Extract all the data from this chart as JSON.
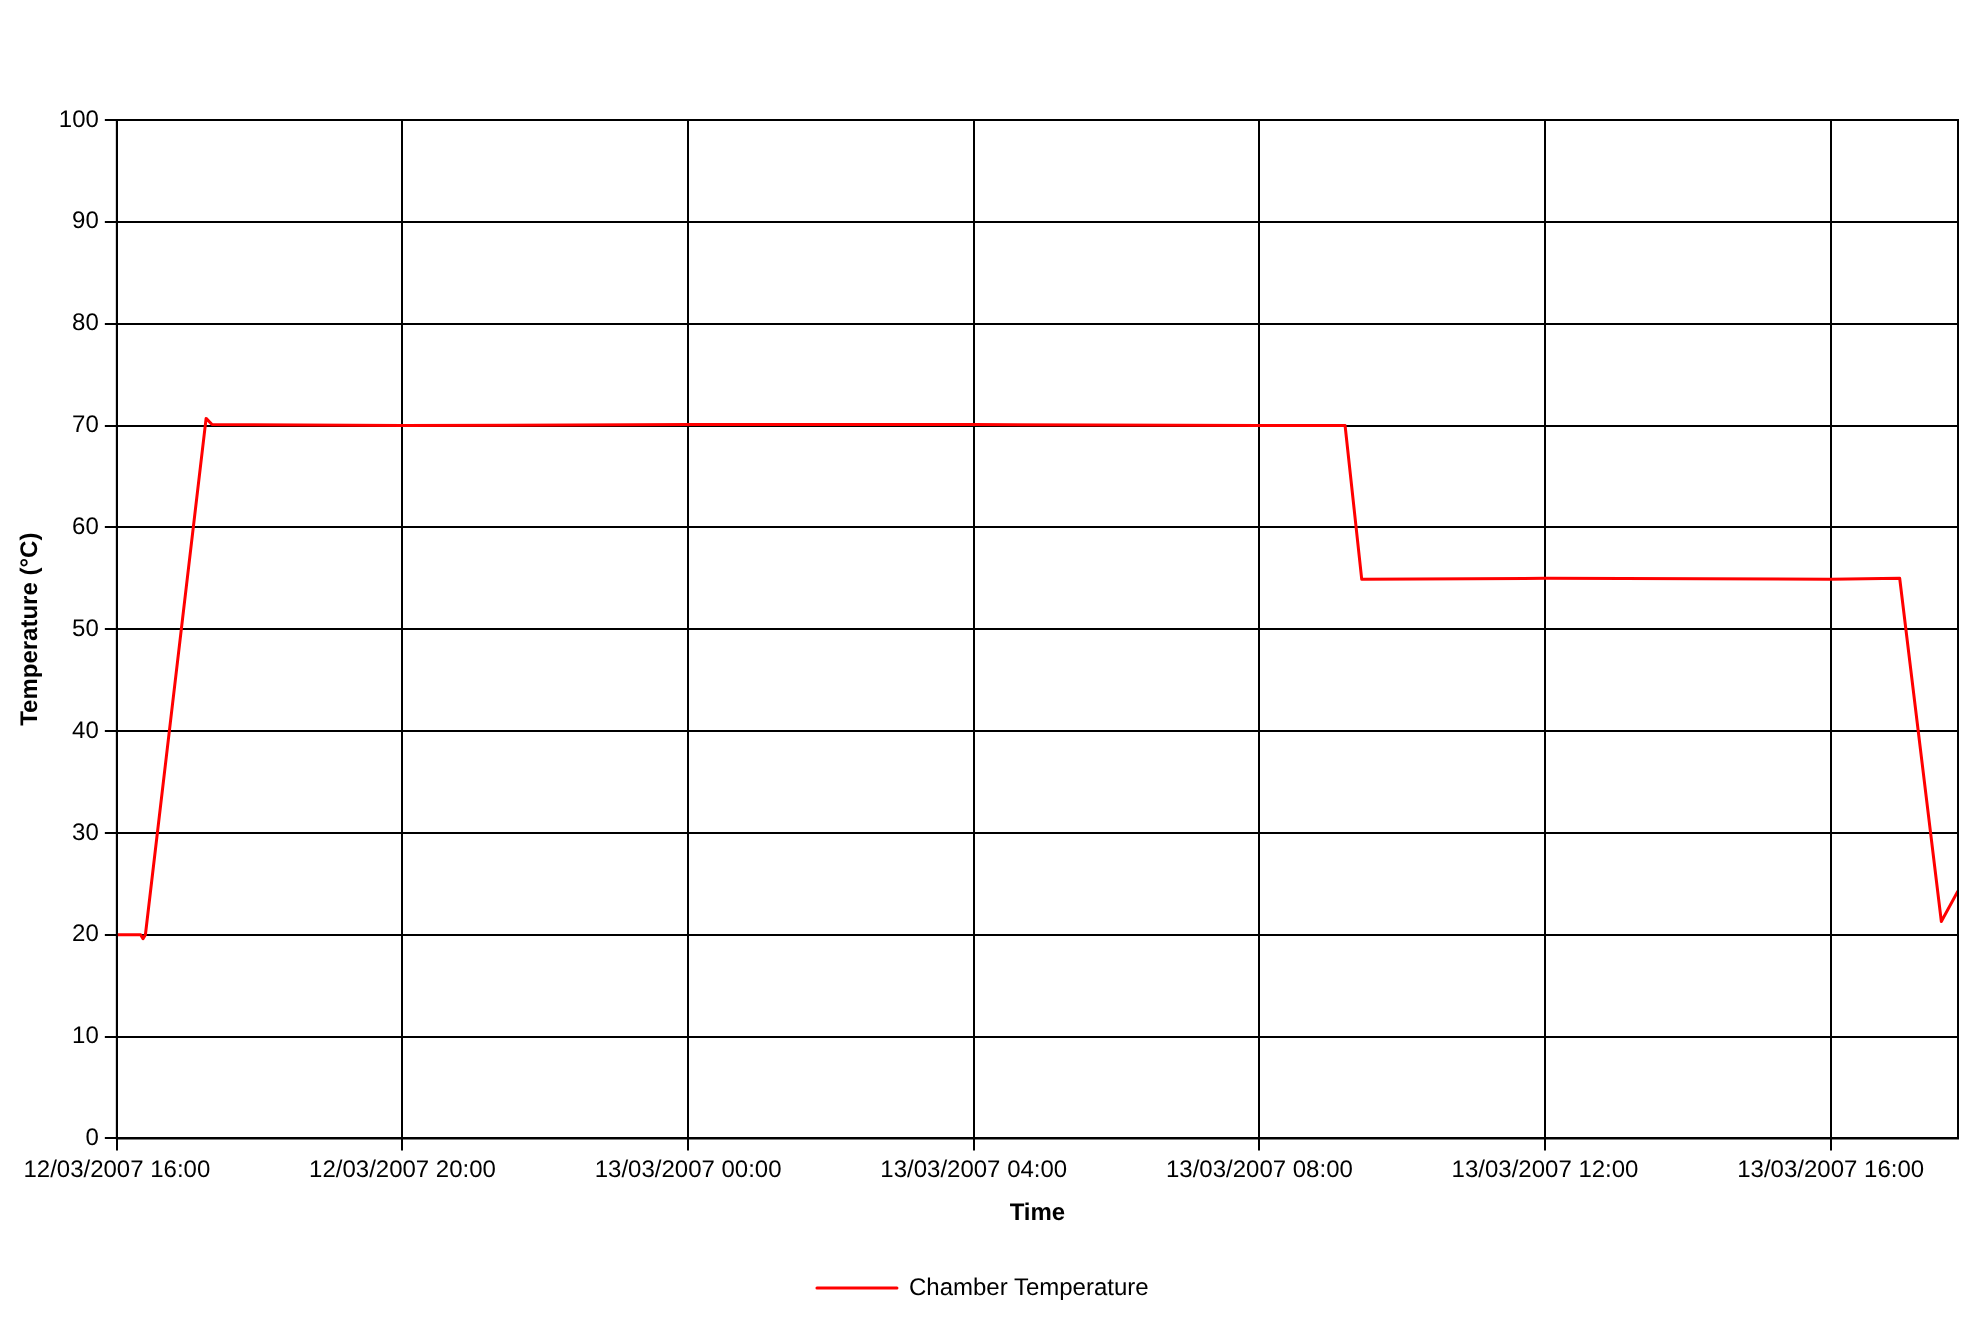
{
  "chart_data": {
    "type": "line",
    "xlabel": "Time",
    "ylabel": "Temperature (°C)",
    "x": [
      "2007-03-12T16:00",
      "2007-03-12T16:20",
      "2007-03-12T16:22",
      "2007-03-12T16:24",
      "2007-03-12T17:15",
      "2007-03-12T17:20",
      "2007-03-12T20:00",
      "2007-03-13T00:00",
      "2007-03-13T04:00",
      "2007-03-13T08:00",
      "2007-03-13T09:12",
      "2007-03-13T09:26",
      "2007-03-13T12:00",
      "2007-03-13T16:00",
      "2007-03-13T16:58",
      "2007-03-13T17:33",
      "2007-03-13T17:47"
    ],
    "series": [
      {
        "name": "Chamber Temperature",
        "color": "#ff0000",
        "values": [
          20,
          20,
          19.6,
          20,
          70.7,
          70.1,
          70,
          70.1,
          70.1,
          70,
          70,
          54.9,
          55,
          54.9,
          55,
          21.3,
          24.3
        ]
      }
    ],
    "xlim": [
      "2007-03-12T16:00",
      "2007-03-13T17:47"
    ],
    "xticks": [
      {
        "value": "2007-03-12T16:00",
        "label": "12/03/2007 16:00"
      },
      {
        "value": "2007-03-12T20:00",
        "label": "12/03/2007 20:00"
      },
      {
        "value": "2007-03-13T00:00",
        "label": "13/03/2007 00:00"
      },
      {
        "value": "2007-03-13T04:00",
        "label": "13/03/2007 04:00"
      },
      {
        "value": "2007-03-13T08:00",
        "label": "13/03/2007 08:00"
      },
      {
        "value": "2007-03-13T12:00",
        "label": "13/03/2007 12:00"
      },
      {
        "value": "2007-03-13T16:00",
        "label": "13/03/2007 16:00"
      }
    ],
    "ylim": [
      0,
      100
    ],
    "yticks": [
      0,
      10,
      20,
      30,
      40,
      50,
      60,
      70,
      80,
      90,
      100
    ],
    "grid": true,
    "legend": "bottom",
    "marker": "none",
    "line_style": "solid"
  }
}
